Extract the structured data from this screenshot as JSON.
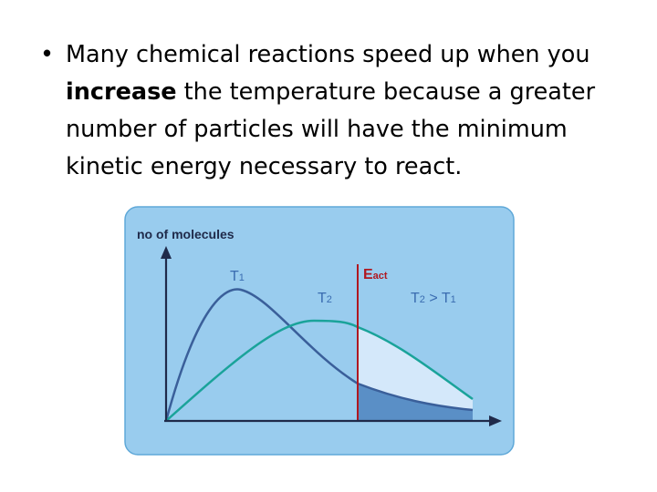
{
  "slide": {
    "bullet_symbol": "•",
    "text_before": "Many chemical reactions speed up when you ",
    "text_bold": "increase",
    "text_after": " the temperature because a greater number of particles will have the minimum kinetic energy necessary to react."
  },
  "diagram": {
    "y_axis_label": "no of molecules",
    "curve_t1_label": "T",
    "curve_t1_sub": "1",
    "curve_t2_label": "T",
    "curve_t2_sub": "2",
    "activation_label": "E",
    "activation_sub": "act",
    "relation_a": "T",
    "relation_a_sub": "2",
    "relation_op": " > ",
    "relation_b": "T",
    "relation_b_sub": "1",
    "colors": {
      "panel_bg": "#99CCEE",
      "panel_border": "#5FA8D8",
      "axis": "#1F2A4A",
      "curve_t1": "#3A5F9A",
      "curve_t2": "#1AA39A",
      "activation_line": "#B01820",
      "label_blue": "#3A6CB0",
      "shade_t2": "#D4E8FA",
      "shade_t1": "#5A8FC6"
    }
  }
}
